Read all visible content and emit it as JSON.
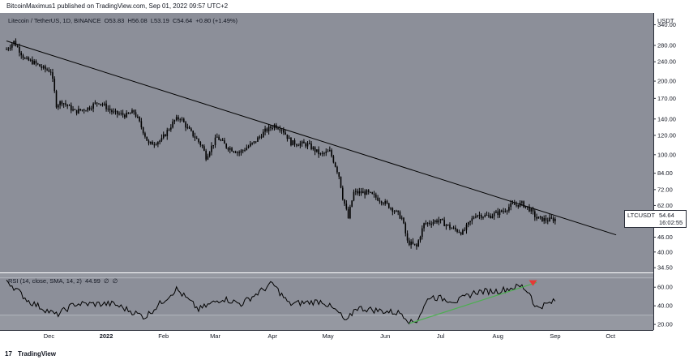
{
  "header": {
    "publish_text": "BitcoinMaximus1 published on TradingView.com, Sep 01, 2022 09:57 UTC+2"
  },
  "symbol": {
    "title": "Litecoin / TetherUS, 1D, BINANCE",
    "o_label": "O",
    "o_value": "53.83",
    "h_label": "H",
    "h_value": "56.08",
    "l_label": "L",
    "l_value": "53.19",
    "c_label": "C",
    "c_value": "54.64",
    "change": "+0.80 (+1.49%)"
  },
  "currency": "USDT",
  "price_tag": {
    "symbol": "LTCUSDT",
    "price": "54.64",
    "countdown": "16:02:55"
  },
  "rsi_legend": {
    "text": "RSI (14, close, SMA, 14, 2)",
    "value": "44.99",
    "na1": "∅",
    "na2": "∅"
  },
  "footer": {
    "brand": "TradingView",
    "logo": "17"
  },
  "colors": {
    "background": "#8c8f99",
    "rsi_band": "#8c8f99",
    "rsi_outer": "#9598a1",
    "candle": "#000000",
    "trendline": "#000000",
    "rsi_support": "#4caf50",
    "arrow": "#e53935"
  },
  "chart_data": [
    {
      "type": "candlestick",
      "title": "Litecoin / TetherUS, 1D, BINANCE",
      "y_scale": "log",
      "ylim": [
        33,
        380
      ],
      "y_ticks": [
        340,
        280,
        240,
        200,
        170,
        140,
        120,
        100,
        84,
        72,
        62,
        54,
        46,
        40,
        34.5
      ],
      "y_tick_labels": [
        "340.00",
        "280.00",
        "240.00",
        "200.00",
        "170.00",
        "140.00",
        "120.00",
        "100.00",
        "84.00",
        "72.00",
        "62.00",
        "54.00",
        "46.00",
        "40.00",
        "34.50"
      ],
      "x_labels": [
        "Dec",
        "2022",
        "Feb",
        "Mar",
        "Apr",
        "May",
        "Jun",
        "Jul",
        "Aug",
        "Sep",
        "Oct"
      ],
      "x_label_dates": [
        "2021-12-01",
        "2022-01-01",
        "2022-02-01",
        "2022-03-01",
        "2022-04-01",
        "2022-05-01",
        "2022-06-01",
        "2022-07-01",
        "2022-08-01",
        "2022-09-01",
        "2022-10-01"
      ],
      "x_range": [
        "2021-11-08",
        "2022-10-18"
      ],
      "price_anchors": [
        [
          "2021-11-08",
          270
        ],
        [
          "2021-11-12",
          290
        ],
        [
          "2021-11-18",
          245
        ],
        [
          "2021-11-22",
          240
        ],
        [
          "2021-11-28",
          225
        ],
        [
          "2021-12-02",
          220
        ],
        [
          "2021-12-05",
          160
        ],
        [
          "2021-12-08",
          165
        ],
        [
          "2021-12-15",
          150
        ],
        [
          "2021-12-22",
          155
        ],
        [
          "2021-12-28",
          165
        ],
        [
          "2022-01-05",
          148
        ],
        [
          "2022-01-12",
          145
        ],
        [
          "2022-01-16",
          150
        ],
        [
          "2022-01-21",
          125
        ],
        [
          "2022-01-24",
          110
        ],
        [
          "2022-01-31",
          115
        ],
        [
          "2022-02-07",
          138
        ],
        [
          "2022-02-10",
          142
        ],
        [
          "2022-02-14",
          128
        ],
        [
          "2022-02-22",
          108
        ],
        [
          "2022-02-24",
          98
        ],
        [
          "2022-03-02",
          118
        ],
        [
          "2022-03-07",
          108
        ],
        [
          "2022-03-14",
          102
        ],
        [
          "2022-03-22",
          112
        ],
        [
          "2022-03-28",
          125
        ],
        [
          "2022-04-02",
          132
        ],
        [
          "2022-04-06",
          128
        ],
        [
          "2022-04-11",
          112
        ],
        [
          "2022-04-20",
          110
        ],
        [
          "2022-04-27",
          100
        ],
        [
          "2022-05-02",
          103
        ],
        [
          "2022-05-07",
          82
        ],
        [
          "2022-05-09",
          67
        ],
        [
          "2022-05-12",
          55
        ],
        [
          "2022-05-15",
          70
        ],
        [
          "2022-05-22",
          70
        ],
        [
          "2022-05-30",
          65
        ],
        [
          "2022-06-05",
          60
        ],
        [
          "2022-06-10",
          55
        ],
        [
          "2022-06-13",
          44
        ],
        [
          "2022-06-18",
          42
        ],
        [
          "2022-06-22",
          52
        ],
        [
          "2022-06-30",
          54
        ],
        [
          "2022-07-07",
          50
        ],
        [
          "2022-07-13",
          48
        ],
        [
          "2022-07-20",
          57
        ],
        [
          "2022-07-27",
          56
        ],
        [
          "2022-08-04",
          59
        ],
        [
          "2022-08-08",
          62
        ],
        [
          "2022-08-14",
          63
        ],
        [
          "2022-08-18",
          60
        ],
        [
          "2022-08-22",
          55
        ],
        [
          "2022-08-28",
          54
        ],
        [
          "2022-09-01",
          54.64
        ]
      ],
      "trendline": [
        {
          "date": "2021-11-08",
          "value": 292
        },
        {
          "date": "2022-10-04",
          "value": 47
        }
      ],
      "last_price": 54.64
    },
    {
      "type": "line",
      "title": "RSI (14, close, SMA, 14, 2)",
      "ylim": [
        14,
        75
      ],
      "y_ticks": [
        60,
        40,
        20
      ],
      "y_tick_labels": [
        "60.00",
        "40.00",
        "20.00"
      ],
      "band": [
        30,
        70
      ],
      "rsi_anchors": [
        [
          "2021-11-08",
          68
        ],
        [
          "2021-11-12",
          60
        ],
        [
          "2021-11-20",
          45
        ],
        [
          "2021-12-05",
          30
        ],
        [
          "2021-12-15",
          42
        ],
        [
          "2022-01-05",
          42
        ],
        [
          "2022-01-22",
          28
        ],
        [
          "2022-02-08",
          58
        ],
        [
          "2022-02-20",
          36
        ],
        [
          "2022-03-05",
          48
        ],
        [
          "2022-03-15",
          42
        ],
        [
          "2022-04-01",
          64
        ],
        [
          "2022-04-10",
          42
        ],
        [
          "2022-04-28",
          45
        ],
        [
          "2022-05-07",
          32
        ],
        [
          "2022-05-11",
          22
        ],
        [
          "2022-05-16",
          38
        ],
        [
          "2022-05-28",
          35
        ],
        [
          "2022-06-10",
          32
        ],
        [
          "2022-06-15",
          22
        ],
        [
          "2022-06-18",
          24
        ],
        [
          "2022-06-25",
          50
        ],
        [
          "2022-07-10",
          45
        ],
        [
          "2022-07-20",
          55
        ],
        [
          "2022-08-01",
          56
        ],
        [
          "2022-08-10",
          60
        ],
        [
          "2022-08-14",
          61
        ],
        [
          "2022-08-19",
          52
        ],
        [
          "2022-08-21",
          38
        ],
        [
          "2022-08-28",
          42
        ],
        [
          "2022-09-01",
          44.99
        ]
      ],
      "support_line": [
        {
          "date": "2022-06-14",
          "value": 21
        },
        {
          "date": "2022-08-22",
          "value": 65
        }
      ],
      "arrow": {
        "date": "2022-08-20",
        "value": 64
      }
    }
  ]
}
